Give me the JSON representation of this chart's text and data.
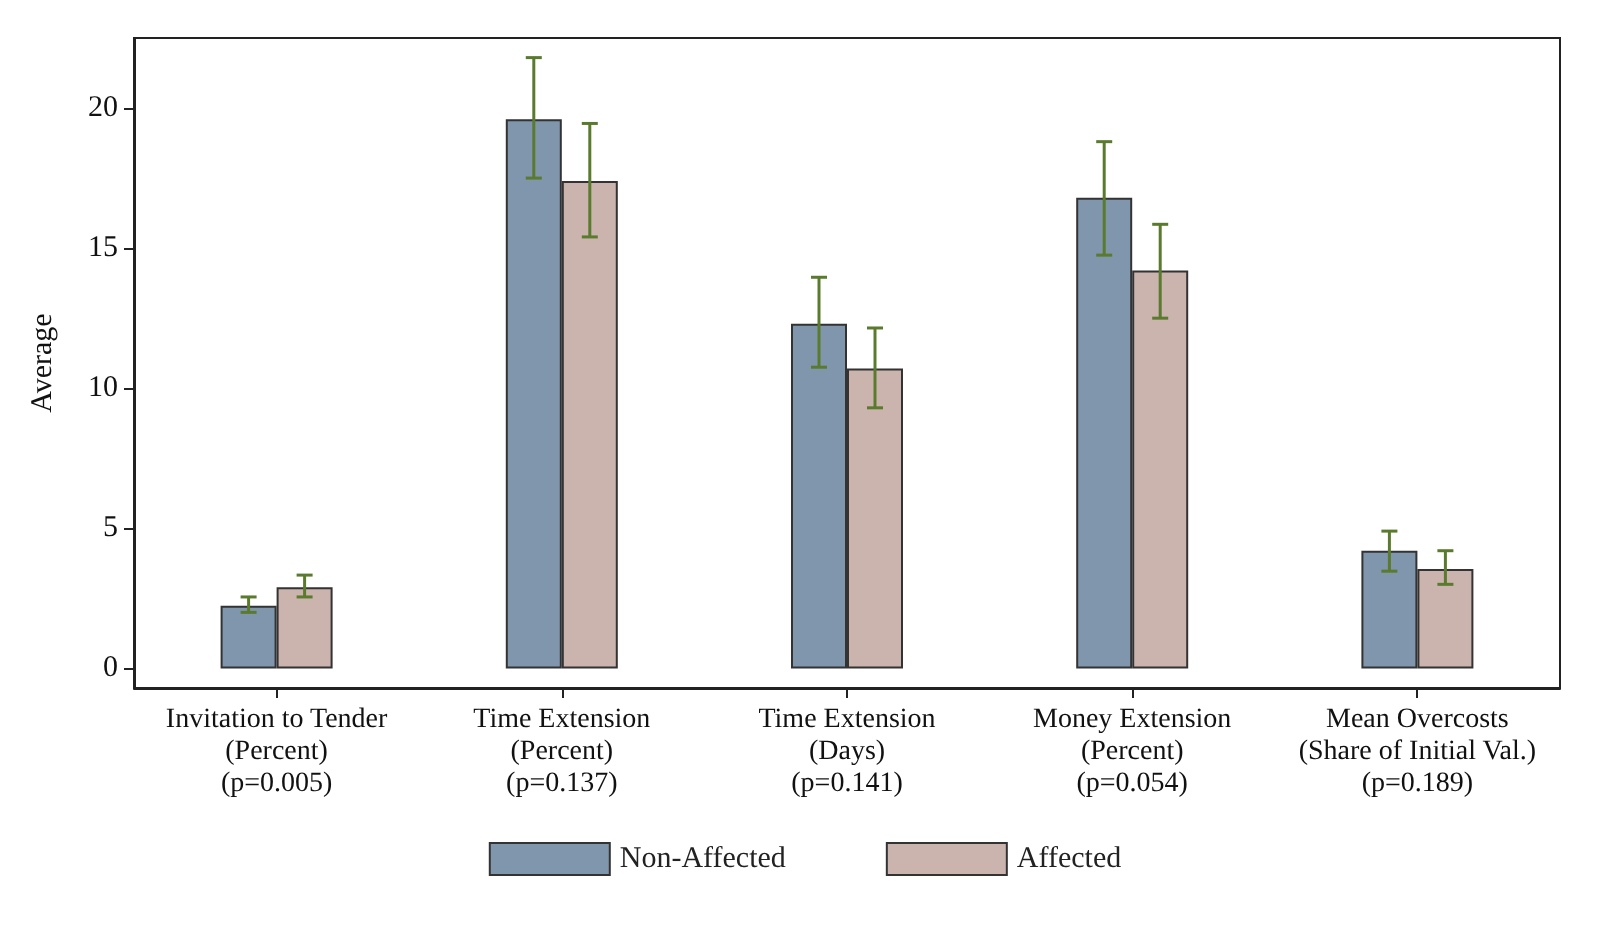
{
  "chart_data": {
    "type": "bar",
    "ylabel": "Average",
    "categories": [
      "Invitation to Tender\n(Percent)\n(p=0.005)",
      "Time Extension\n(Percent)\n(p=0.137)",
      "Time Extension\n(Days)\n(p=0.141)",
      "Money Extension\n(Percent)\n(p=0.054)",
      "Mean Overcosts\n(Share of Initial Val.)\n(p=0.189)"
    ],
    "series": [
      {
        "name": "Non-Affected",
        "color": "#7f96ad",
        "values": [
          2.24,
          19.6,
          12.3,
          16.8,
          4.2
        ],
        "errors": [
          [
            2.0,
            2.55
          ],
          [
            17.5,
            21.8
          ],
          [
            10.75,
            13.96
          ],
          [
            14.75,
            18.8
          ],
          [
            3.47,
            4.9
          ]
        ]
      },
      {
        "name": "Affected",
        "color": "#cbb3ae",
        "values": [
          2.9,
          17.4,
          10.7,
          14.2,
          3.55
        ],
        "errors": [
          [
            2.55,
            3.33
          ],
          [
            15.4,
            19.45
          ],
          [
            9.3,
            12.15
          ],
          [
            12.5,
            15.85
          ],
          [
            3.0,
            4.2
          ]
        ]
      }
    ],
    "ylim": [
      -0.7,
      22.5
    ],
    "yticks": [
      0,
      5,
      10,
      15,
      20
    ],
    "grid": false,
    "legend": "bottom"
  }
}
